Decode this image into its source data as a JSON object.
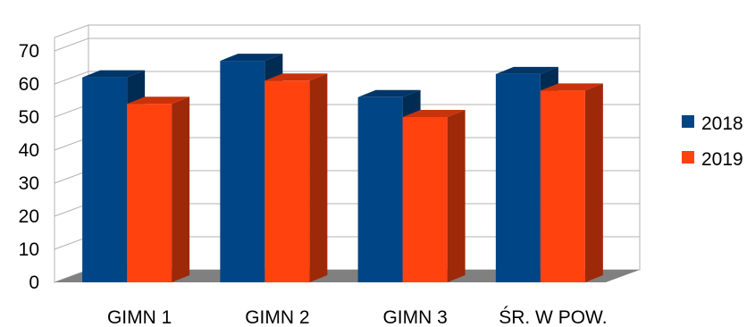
{
  "chart_data": {
    "type": "bar",
    "style": "3d-clustered-column",
    "categories": [
      "GIMN 1",
      "GIMN 2",
      "GIMN 3",
      "ŚR. W POW."
    ],
    "series": [
      {
        "name": "2018",
        "values": [
          62,
          67,
          56,
          63
        ],
        "color": "#004586"
      },
      {
        "name": "2019",
        "values": [
          54,
          61,
          50,
          58
        ],
        "color": "#ff420e"
      }
    ],
    "yticks": [
      "0",
      "10",
      "20",
      "30",
      "40",
      "50",
      "60",
      "70"
    ],
    "ylim": [
      0,
      70
    ],
    "grid": true,
    "legend_position": "right",
    "floor_color": "#808080"
  }
}
